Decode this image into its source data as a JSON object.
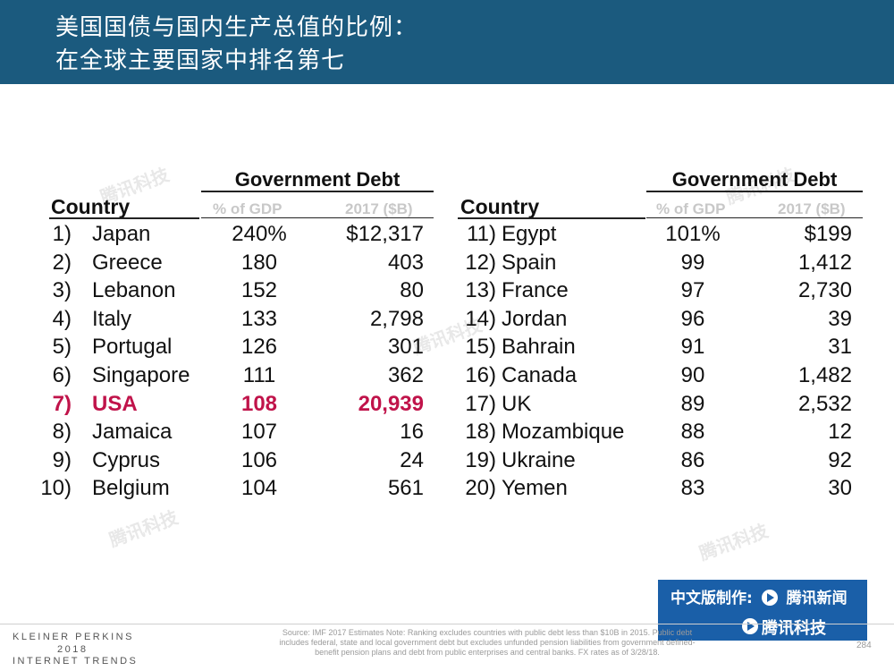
{
  "header": {
    "title_line1": "美国国债与国内生产总值的比例：",
    "title_line2": "在全球主要国家中排名第七"
  },
  "chart_data": {
    "type": "table",
    "group_header": "Government Debt",
    "columns": [
      "Country",
      "% of GDP",
      "2017 ($B)"
    ],
    "highlight_color": "#c0134a",
    "left": [
      {
        "rank": "1)",
        "country": "Japan",
        "pct": "240%",
        "debt": "$12,317"
      },
      {
        "rank": "2)",
        "country": "Greece",
        "pct": "180",
        "debt": "403"
      },
      {
        "rank": "3)",
        "country": "Lebanon",
        "pct": "152",
        "debt": "80"
      },
      {
        "rank": "4)",
        "country": "Italy",
        "pct": "133",
        "debt": "2,798"
      },
      {
        "rank": "5)",
        "country": "Portugal",
        "pct": "126",
        "debt": "301"
      },
      {
        "rank": "6)",
        "country": "Singapore",
        "pct": "111",
        "debt": "362"
      },
      {
        "rank": "7)",
        "country": "USA",
        "pct": "108",
        "debt": "20,939",
        "highlight": true
      },
      {
        "rank": "8)",
        "country": "Jamaica",
        "pct": "107",
        "debt": "16"
      },
      {
        "rank": "9)",
        "country": "Cyprus",
        "pct": "106",
        "debt": "24"
      },
      {
        "rank": "10)",
        "country": "Belgium",
        "pct": "104",
        "debt": "561"
      }
    ],
    "right": [
      {
        "rank": "11)",
        "country": "Egypt",
        "pct": "101%",
        "debt": "$199"
      },
      {
        "rank": "12)",
        "country": "Spain",
        "pct": "99",
        "debt": "1,412"
      },
      {
        "rank": "13)",
        "country": "France",
        "pct": "97",
        "debt": "2,730"
      },
      {
        "rank": "14)",
        "country": "Jordan",
        "pct": "96",
        "debt": "39"
      },
      {
        "rank": "15)",
        "country": "Bahrain",
        "pct": "91",
        "debt": "31"
      },
      {
        "rank": "16)",
        "country": "Canada",
        "pct": "90",
        "debt": "1,482"
      },
      {
        "rank": "17)",
        "country": "UK",
        "pct": "89",
        "debt": "2,532"
      },
      {
        "rank": "18)",
        "country": "Mozambique",
        "pct": "88",
        "debt": "12"
      },
      {
        "rank": "19)",
        "country": "Ukraine",
        "pct": "86",
        "debt": "92"
      },
      {
        "rank": "20)",
        "country": "Yemen",
        "pct": "83",
        "debt": "30"
      }
    ]
  },
  "footer": {
    "brand_line1": "KLEINER PERKINS",
    "brand_line2": "2018",
    "brand_line3": "INTERNET TRENDS",
    "source": "Source: IMF 2017 Estimates Note: Ranking excludes countries with public debt less than $10B in 2015. Public debt includes federal, state and local government debt but excludes unfunded pension liabilities from government defined-benefit pension plans and debt from public enterprises and central banks. FX rates as of 3/28/18.",
    "page_number": "284"
  },
  "badge": {
    "line1": "中文版制作:",
    "brand1": "腾讯新闻",
    "brand2": "腾讯科技"
  },
  "watermark": "腾讯科技"
}
